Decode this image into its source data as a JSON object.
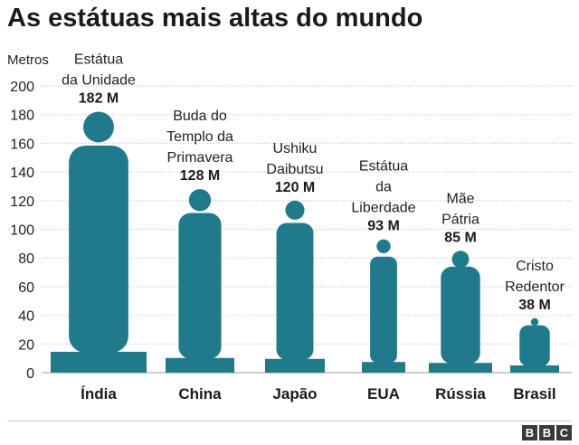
{
  "title": "As estátuas mais altas do mundo",
  "logo": [
    "B",
    "B",
    "C"
  ],
  "colors": {
    "statue": "#1f7a8c",
    "grid": "#bbbbbb",
    "text": "#222222"
  },
  "chart_data": {
    "type": "bar",
    "ylabel": "Metros",
    "ylim": [
      0,
      200
    ],
    "yticks": [
      0,
      20,
      40,
      60,
      80,
      100,
      120,
      140,
      160,
      180,
      200
    ],
    "categories": [
      "Índia",
      "China",
      "Japão",
      "EUA",
      "Rússia",
      "Brasil"
    ],
    "statue_names": [
      [
        "Estátua",
        "da Unidade"
      ],
      [
        "Buda do",
        "Templo da",
        "Primavera"
      ],
      [
        "Ushiku",
        "Daibutsu"
      ],
      [
        "Estátua",
        "da",
        "Liberdade"
      ],
      [
        "Mãe",
        "Pátria"
      ],
      [
        "Cristo",
        "Redentor"
      ]
    ],
    "value_labels": [
      "182 M",
      "128 M",
      "120 M",
      "93 M",
      "85 M",
      "38 M"
    ],
    "values": [
      182,
      128,
      120,
      93,
      85,
      38
    ]
  }
}
